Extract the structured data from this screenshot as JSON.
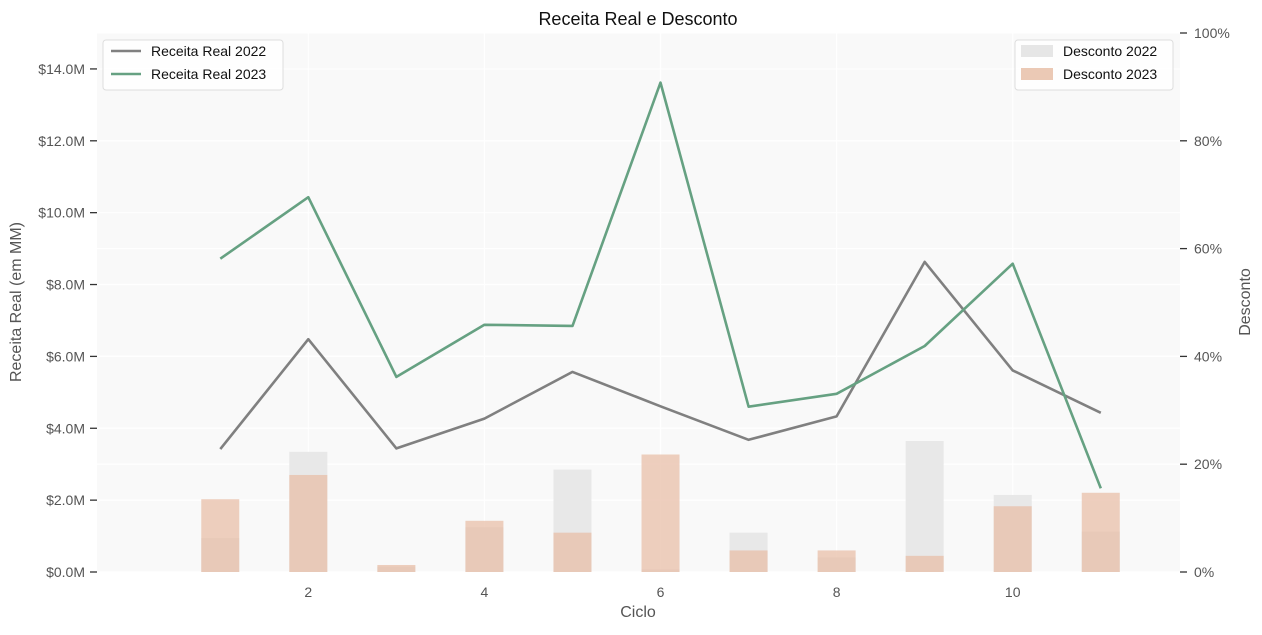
{
  "chart_data": {
    "type": "bar+line",
    "title": "Receita Real e Desconto",
    "xlabel": "Ciclo",
    "ylabel_left": "Receita Real (em MM)",
    "ylabel_right": "Desconto",
    "x": [
      1,
      2,
      3,
      4,
      5,
      6,
      7,
      8,
      9,
      10,
      11
    ],
    "x_ticks": [
      2,
      4,
      6,
      8,
      10
    ],
    "x_tick_labels": [
      "2",
      "4",
      "6",
      "8",
      "10"
    ],
    "xlim": [
      -0.4,
      11.9
    ],
    "ylim_left": [
      0,
      15
    ],
    "y_left_ticks": [
      0,
      2,
      4,
      6,
      8,
      10,
      12,
      14
    ],
    "y_left_tick_labels": [
      "$0.0M",
      "$2.0M",
      "$4.0M",
      "$6.0M",
      "$8.0M",
      "$10.0M",
      "$12.0M",
      "$14.0M"
    ],
    "ylim_right": [
      0,
      100
    ],
    "y_right_ticks": [
      0,
      20,
      40,
      60,
      80,
      100
    ],
    "y_right_tick_labels": [
      "0%",
      "20%",
      "40%",
      "60%",
      "80%",
      "100%"
    ],
    "grid": true,
    "line_series": [
      {
        "name": "Receita Real 2022",
        "color": "#808080",
        "values": [
          3.42,
          6.48,
          3.44,
          4.27,
          5.57,
          4.61,
          3.68,
          4.33,
          8.63,
          5.61,
          4.43
        ]
      },
      {
        "name": "Receita Real 2023",
        "color": "#66a182",
        "values": [
          8.72,
          10.43,
          5.43,
          6.88,
          6.85,
          13.62,
          4.6,
          4.96,
          6.29,
          8.58,
          2.33
        ]
      }
    ],
    "bar_series": [
      {
        "name": "Desconto 2022",
        "color": "#e6e6e6",
        "values": [
          6.3,
          22.3,
          1.0,
          8.3,
          19.0,
          0.5,
          7.3,
          2.7,
          24.3,
          14.3,
          7.5
        ]
      },
      {
        "name": "Desconto 2023",
        "color": "#e8bfa8",
        "values": [
          13.5,
          18.0,
          1.3,
          9.5,
          7.3,
          21.8,
          4.0,
          4.0,
          3.0,
          12.2,
          14.7
        ]
      }
    ],
    "legend_left_position": "top-left",
    "legend_right_position": "top-right"
  }
}
